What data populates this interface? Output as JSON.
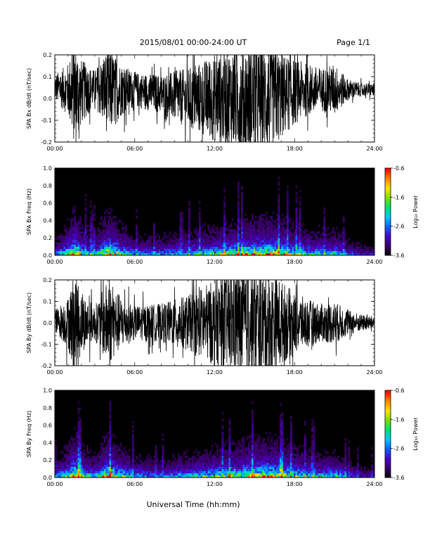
{
  "header": {
    "title": "2015/08/01  00:00-24:00 UT",
    "page": "Page 1/1"
  },
  "xaxis": {
    "label": "Universal Time (hh:mm)",
    "range_hours": [
      0,
      24
    ],
    "ticks": [
      "00:00",
      "06:00",
      "12:00",
      "18:00",
      "24:00"
    ]
  },
  "colors": {
    "trace": "#000000",
    "background_spec": "#000000",
    "colormap": [
      "#000000",
      "#3a0066",
      "#4a00c8",
      "#1060ff",
      "#00c8ff",
      "#00e070",
      "#80e000",
      "#ffe000",
      "#ff8000",
      "#ff0000"
    ]
  },
  "chart_data": [
    {
      "type": "line",
      "ylabel": "SPA Bx dB/dt (nT/sec)",
      "ylim": [
        -0.2,
        0.2
      ],
      "yticks": [
        "0.2",
        "0.1",
        "0.0",
        "-0.1",
        "-0.2"
      ],
      "description_values": "dB/dt amplitude envelope vs UT hour",
      "x": [
        0,
        1,
        1.5,
        2,
        3,
        4,
        5,
        6,
        8,
        10,
        12,
        14,
        15,
        16,
        17,
        18,
        19,
        20,
        21,
        22,
        23,
        24
      ],
      "amplitude": [
        0.06,
        0.12,
        0.25,
        0.15,
        0.08,
        0.2,
        0.12,
        0.08,
        0.09,
        0.14,
        0.2,
        0.25,
        0.25,
        0.25,
        0.2,
        0.15,
        0.12,
        0.1,
        0.12,
        0.05,
        0.03,
        0.03
      ],
      "offset": [
        0.05,
        0.04,
        0.02,
        0.03,
        0.05,
        0.03,
        0.04,
        0.04,
        0.02,
        0.0,
        0.0,
        0.0,
        0.0,
        0.0,
        0.01,
        0.03,
        0.04,
        0.04,
        0.04,
        0.04,
        0.04,
        0.04
      ]
    },
    {
      "type": "heatmap",
      "ylabel": "SPA Bx Freq (Hz)",
      "ylim": [
        0,
        1.0
      ],
      "yticks": [
        "1.0",
        "0.8",
        "0.6",
        "0.4",
        "0.2",
        "0.0"
      ],
      "colorbar": {
        "label": "Log₁₀ Power",
        "range": [
          -3.6,
          -0.6
        ],
        "ticks": [
          "-0.6",
          "-1.6",
          "-2.6",
          "-3.6"
        ]
      },
      "activity_x": [
        0,
        1,
        1.5,
        2,
        3,
        4,
        5,
        6,
        8,
        10,
        12,
        14,
        15,
        16,
        17,
        18,
        19,
        20,
        21,
        22,
        23,
        24
      ],
      "activity": [
        0.3,
        0.6,
        1.0,
        0.6,
        0.4,
        0.9,
        0.6,
        0.35,
        0.35,
        0.45,
        0.55,
        0.7,
        0.8,
        0.85,
        0.75,
        0.6,
        0.5,
        0.45,
        0.5,
        0.3,
        0.2,
        0.2
      ]
    },
    {
      "type": "line",
      "ylabel": "SPA By dB/dt (nT/sec)",
      "ylim": [
        -0.2,
        0.2
      ],
      "yticks": [
        "0.2",
        "0.1",
        "0.0",
        "-0.1",
        "-0.2"
      ],
      "x": [
        0,
        1,
        1.5,
        2,
        3,
        4,
        5,
        6,
        8,
        10,
        12,
        14,
        15,
        16,
        17,
        18,
        19,
        20,
        21,
        22,
        23,
        24
      ],
      "amplitude": [
        0.05,
        0.12,
        0.25,
        0.14,
        0.08,
        0.2,
        0.12,
        0.08,
        0.09,
        0.13,
        0.2,
        0.25,
        0.25,
        0.25,
        0.2,
        0.14,
        0.11,
        0.09,
        0.1,
        0.06,
        0.04,
        0.03
      ],
      "offset": [
        0.01,
        0.0,
        0.0,
        0.0,
        0.0,
        0.0,
        0.0,
        0.0,
        0.0,
        0.0,
        0.0,
        0.0,
        0.0,
        0.0,
        0.0,
        0.0,
        0.0,
        0.0,
        0.0,
        0.0,
        0.0,
        0.0
      ]
    },
    {
      "type": "heatmap",
      "ylabel": "SPA By Freq (Hz)",
      "ylim": [
        0,
        1.0
      ],
      "yticks": [
        "1.0",
        "0.8",
        "0.6",
        "0.4",
        "0.2",
        "0.0"
      ],
      "colorbar": {
        "label": "Log₁₀ Power",
        "range": [
          -3.6,
          -0.6
        ],
        "ticks": [
          "-0.6",
          "-1.6",
          "-2.6",
          "-3.6"
        ]
      },
      "activity_x": [
        0,
        1,
        1.5,
        2,
        3,
        4,
        5,
        6,
        8,
        10,
        12,
        14,
        15,
        16,
        17,
        18,
        19,
        20,
        21,
        22,
        23,
        24
      ],
      "activity": [
        0.3,
        0.6,
        1.0,
        0.65,
        0.4,
        0.9,
        0.6,
        0.4,
        0.35,
        0.45,
        0.55,
        0.7,
        0.8,
        0.85,
        0.75,
        0.6,
        0.5,
        0.45,
        0.5,
        0.3,
        0.2,
        0.2
      ]
    }
  ]
}
